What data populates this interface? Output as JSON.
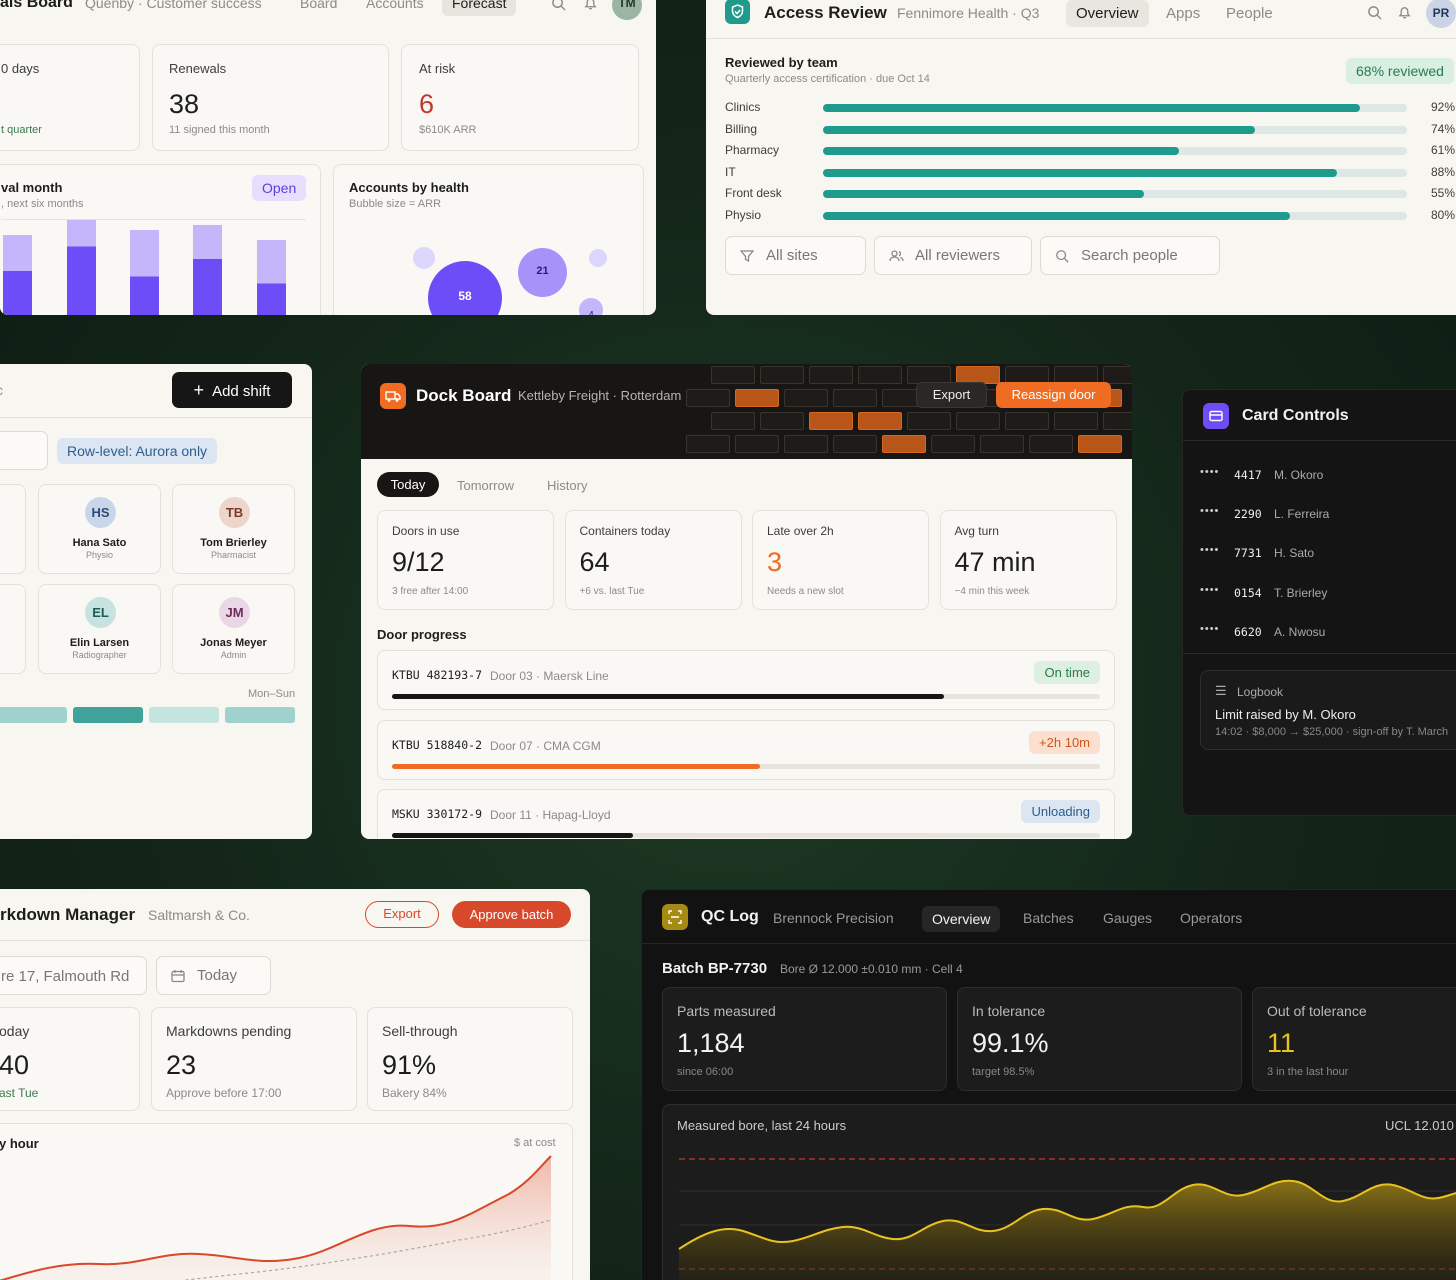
{
  "deals": {
    "title": "als Board",
    "subtitle": "Quenby · Customer success",
    "tabs": [
      "Board",
      "Accounts",
      "Forecast"
    ],
    "avatar": "TM",
    "stats": [
      {
        "label": "0 days",
        "sub": "t quarter"
      },
      {
        "label": "Renewals",
        "value": "38",
        "sub": "11 signed this month"
      },
      {
        "label": "At risk",
        "value": "6",
        "sub": "$610K ARR"
      }
    ],
    "renewal": {
      "title": "val month",
      "sub": ", next six months",
      "badge": "Open"
    },
    "health": {
      "title": "Accounts by health",
      "sub": "Bubble size = ARR",
      "bubbles": [
        "58",
        "21",
        "4"
      ]
    },
    "colors": {
      "accent": "#6c4df7",
      "light": "#c3b6fb",
      "risk": "#c0392b"
    }
  },
  "access": {
    "title": "Access Review",
    "subtitle": "Fennimore Health · Q3",
    "tabs": [
      "Overview",
      "Apps",
      "People"
    ],
    "avatar": "PR",
    "section": "Reviewed by team",
    "section_sub": "Quarterly access certification · due Oct 14",
    "badge": "68% reviewed",
    "rows": [
      {
        "team": "Clinics",
        "pct": 92,
        "label": "92%"
      },
      {
        "team": "Billing",
        "pct": 74,
        "label": "74%"
      },
      {
        "team": "Pharmacy",
        "pct": 61,
        "label": "61%"
      },
      {
        "team": "IT",
        "pct": 88,
        "label": "88%"
      },
      {
        "team": "Front desk",
        "pct": 55,
        "label": "55%"
      },
      {
        "team": "Physio",
        "pct": 80,
        "label": "80%"
      }
    ],
    "filters": [
      "All sites",
      "All reviewers",
      "Search people"
    ]
  },
  "shift": {
    "title_frag": "c",
    "add_label": "Add shift",
    "row_level": "Row-level: Aurora only",
    "people": [
      {
        "initials": "HS",
        "name": "Hana Sato",
        "role": "Physio"
      },
      {
        "initials": "TB",
        "name": "Tom Brierley",
        "role": "Pharmacist"
      },
      {
        "initials": "EL",
        "name": "Elin Larsen",
        "role": "Radiographer"
      },
      {
        "initials": "JM",
        "name": "Jonas Meyer",
        "role": "Admin"
      }
    ],
    "range": "Mon–Sun"
  },
  "dock": {
    "title": "Dock Board",
    "subtitle": "Kettleby Freight · Rotterdam",
    "export": "Export",
    "reassign": "Reassign door",
    "tabs": [
      "Today",
      "Tomorrow",
      "History"
    ],
    "stats": [
      {
        "label": "Doors in use",
        "value": "9/12",
        "sub": "3 free after 14:00"
      },
      {
        "label": "Containers today",
        "value": "64",
        "sub": "+6 vs. last Tue"
      },
      {
        "label": "Late over 2h",
        "value": "3",
        "sub": "Needs a new slot"
      },
      {
        "label": "Avg turn",
        "value": "47 min",
        "sub": "−4 min this week"
      }
    ],
    "progress_title": "Door progress",
    "rows": [
      {
        "id": "KTBU 482193-7",
        "door": "Door 03 · Maersk Line",
        "status": "On time",
        "pct": 0.78
      },
      {
        "id": "KTBU 518840-2",
        "door": "Door 07 · CMA CGM",
        "status": "+2h 10m",
        "pct": 0.52
      },
      {
        "id": "MSKU 330172-9",
        "door": "Door 11 · Hapag-Lloyd",
        "status": "Unloading",
        "pct": 0.34
      }
    ]
  },
  "cards": {
    "title": "Card Controls",
    "list": [
      {
        "last4": "4417",
        "name": "M. Okoro"
      },
      {
        "last4": "2290",
        "name": "L. Ferreira"
      },
      {
        "last4": "7731",
        "name": "H. Sato"
      },
      {
        "last4": "0154",
        "name": "T. Brierley"
      },
      {
        "last4": "6620",
        "name": "A. Nwosu"
      }
    ],
    "mask": "••••",
    "log_title": "Logbook",
    "log_text": "Limit raised by M. Okoro",
    "log_sub": "14:02 · $8,000 → $25,000 · sign-off by T. March"
  },
  "markdown": {
    "title": "rkdown Manager",
    "subtitle": "Saltmarsh & Co.",
    "export": "Export",
    "approve": "Approve batch",
    "store": "re 17, Falmouth Rd",
    "date": "Today",
    "stats": [
      {
        "label": "oday",
        "value": "40",
        "sub": "ast Tue"
      },
      {
        "label": "Markdowns pending",
        "value": "23",
        "sub": "Approve before 17:00"
      },
      {
        "label": "Sell-through",
        "value": "91%",
        "sub": "Bakery 84%"
      }
    ],
    "chart_title": "y hour",
    "chart_unit": "$ at cost"
  },
  "qc": {
    "title": "QC Log",
    "subtitle": "Brennock Precision",
    "tabs": [
      "Overview",
      "Batches",
      "Gauges",
      "Operators"
    ],
    "batch": "Batch BP-7730",
    "spec": "Bore Ø 12.000 ±0.010 mm · Cell 4",
    "stats": [
      {
        "label": "Parts measured",
        "value": "1,184",
        "sub": "since 06:00"
      },
      {
        "label": "In tolerance",
        "value": "99.1%",
        "sub": "target 98.5%"
      },
      {
        "label": "Out of tolerance",
        "value": "11",
        "sub": "3 in the last hour"
      }
    ],
    "chart_title": "Measured bore, last 24 hours",
    "ucl": "UCL 12.010"
  }
}
